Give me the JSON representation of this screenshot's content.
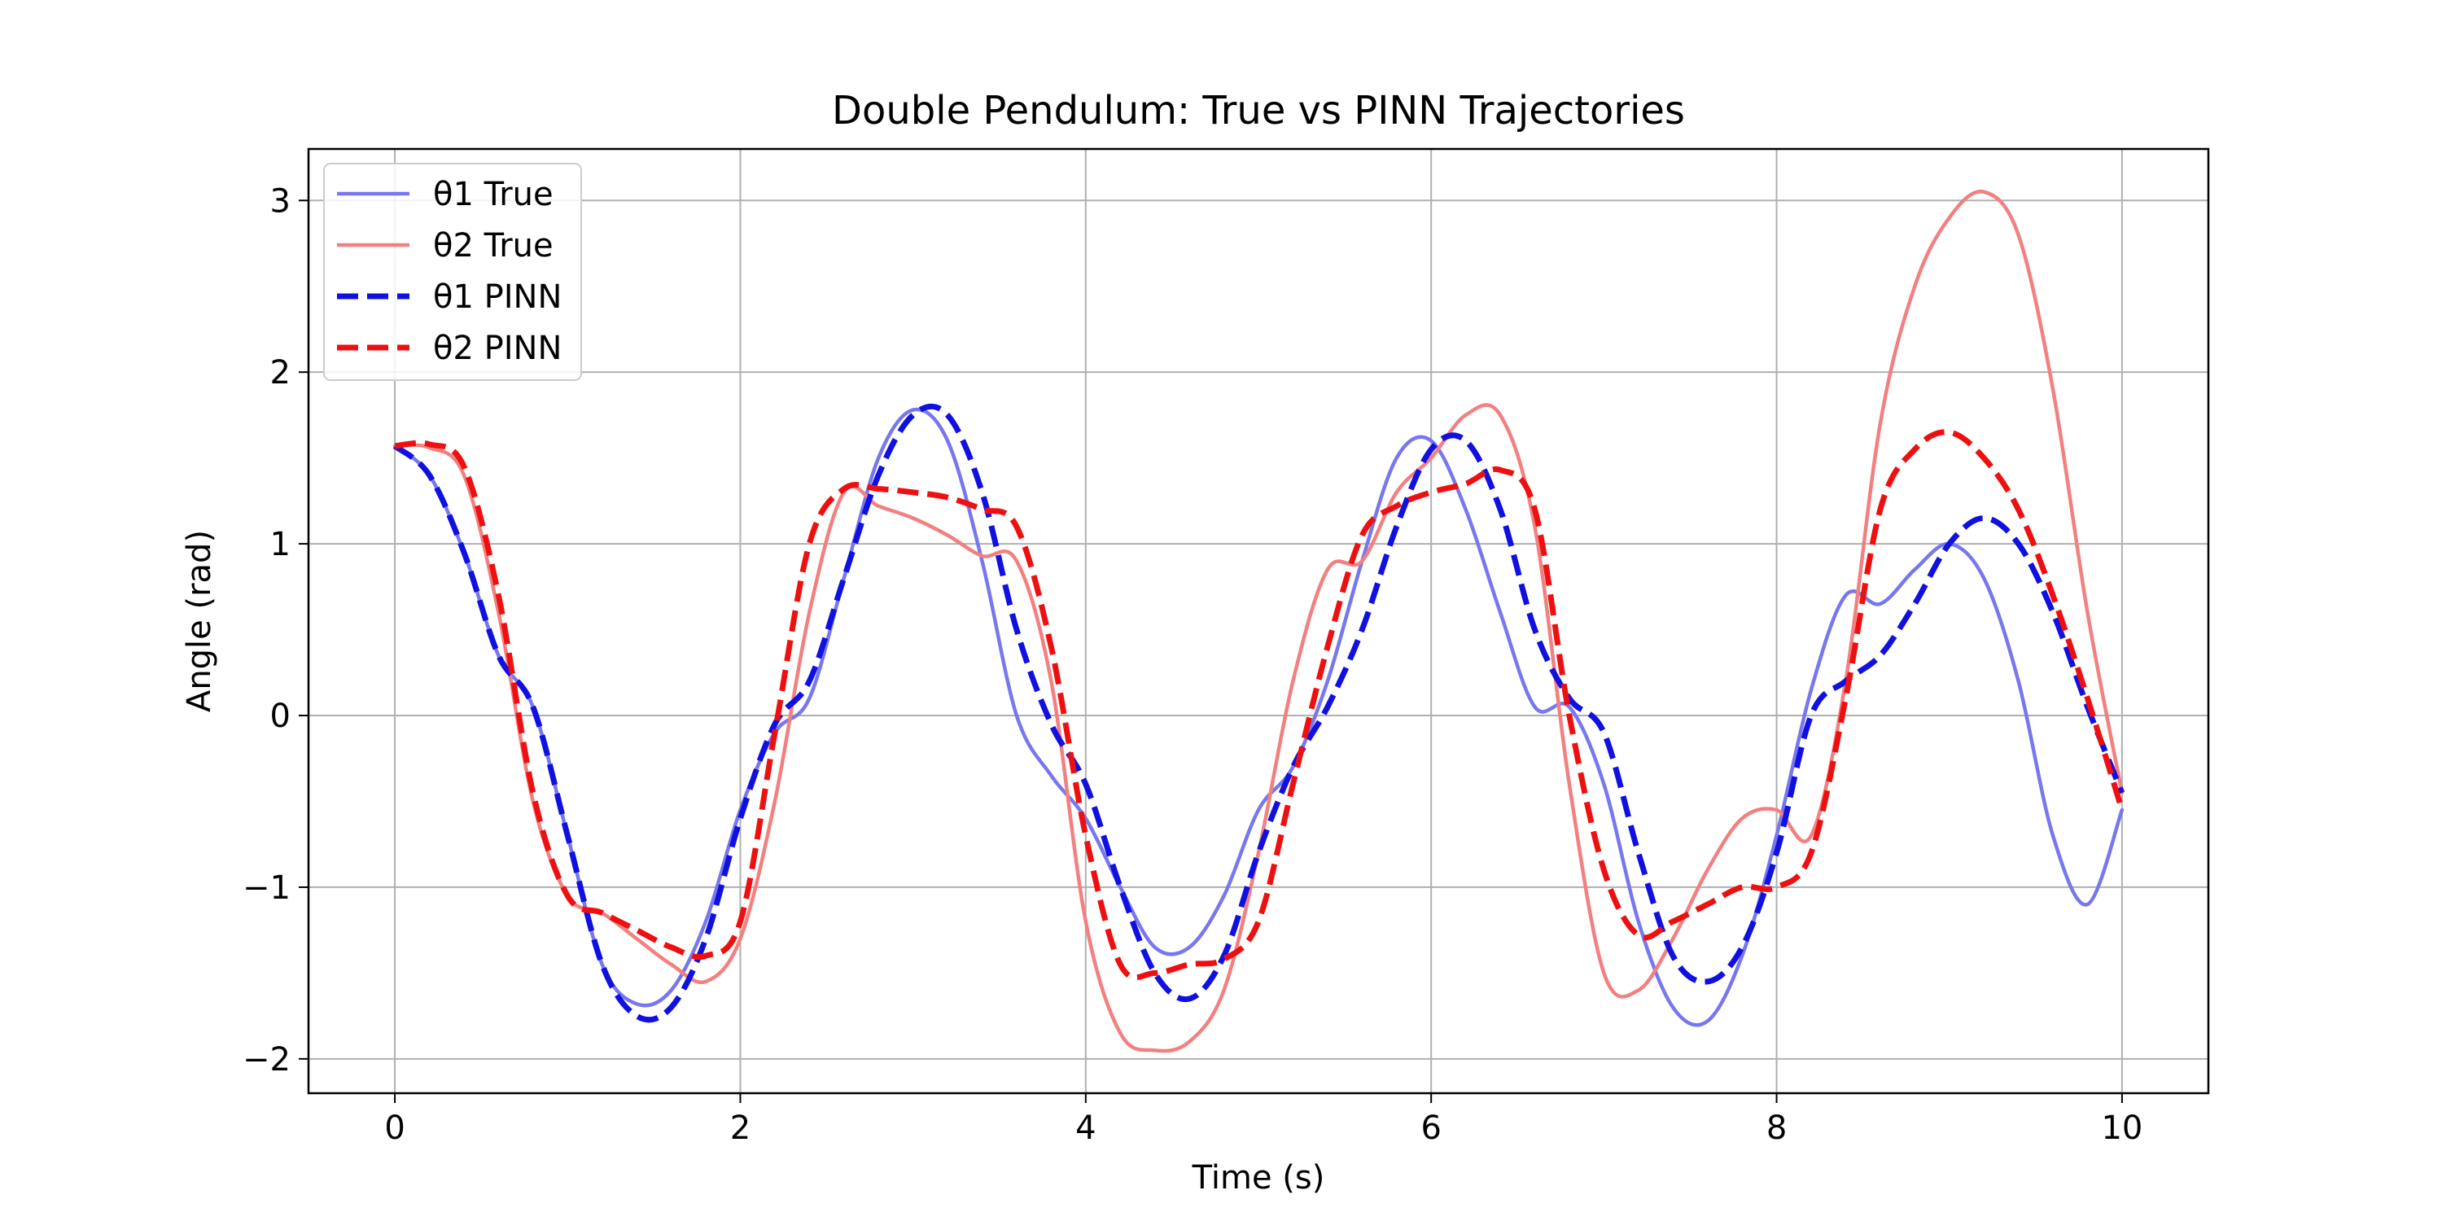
{
  "chart_data": {
    "type": "line",
    "title": "Double Pendulum: True vs PINN Trajectories",
    "xlabel": "Time (s)",
    "ylabel": "Angle (rad)",
    "xlim": [
      -0.5,
      10.5
    ],
    "ylim": [
      -2.2,
      3.3
    ],
    "xticks": [
      0,
      2,
      4,
      6,
      8,
      10
    ],
    "yticks": [
      3,
      2,
      1,
      0,
      -1,
      -2
    ],
    "xtick_labels": [
      "0",
      "2",
      "4",
      "6",
      "8",
      "10"
    ],
    "ytick_labels": [
      "3",
      "2",
      "1",
      "0",
      "−1",
      "−2"
    ],
    "grid": true,
    "legend_position": "top-left",
    "series": [
      {
        "name": "θ1 True",
        "color": "#7777ee",
        "style": "solid",
        "points": [
          [
            0,
            1.57
          ],
          [
            0.2,
            1.4
          ],
          [
            0.4,
            0.95
          ],
          [
            0.6,
            0.35
          ],
          [
            0.8,
            0.05
          ],
          [
            1.0,
            -0.7
          ],
          [
            1.2,
            -1.45
          ],
          [
            1.4,
            -1.68
          ],
          [
            1.6,
            -1.6
          ],
          [
            1.8,
            -1.2
          ],
          [
            2.0,
            -0.55
          ],
          [
            2.2,
            -0.1
          ],
          [
            2.4,
            0.1
          ],
          [
            2.6,
            0.8
          ],
          [
            2.8,
            1.5
          ],
          [
            3.0,
            1.78
          ],
          [
            3.2,
            1.6
          ],
          [
            3.4,
            0.9
          ],
          [
            3.6,
            0.0
          ],
          [
            3.8,
            -0.35
          ],
          [
            4.0,
            -0.6
          ],
          [
            4.2,
            -1.0
          ],
          [
            4.4,
            -1.35
          ],
          [
            4.6,
            -1.35
          ],
          [
            4.8,
            -1.05
          ],
          [
            5.0,
            -0.55
          ],
          [
            5.2,
            -0.3
          ],
          [
            5.4,
            0.2
          ],
          [
            5.6,
            0.9
          ],
          [
            5.8,
            1.5
          ],
          [
            6.0,
            1.6
          ],
          [
            6.2,
            1.2
          ],
          [
            6.4,
            0.6
          ],
          [
            6.6,
            0.05
          ],
          [
            6.8,
            0.05
          ],
          [
            7.0,
            -0.4
          ],
          [
            7.2,
            -1.2
          ],
          [
            7.4,
            -1.7
          ],
          [
            7.6,
            -1.78
          ],
          [
            7.8,
            -1.4
          ],
          [
            8.0,
            -0.7
          ],
          [
            8.2,
            0.15
          ],
          [
            8.4,
            0.7
          ],
          [
            8.6,
            0.65
          ],
          [
            8.8,
            0.85
          ],
          [
            9.0,
            1.0
          ],
          [
            9.2,
            0.8
          ],
          [
            9.4,
            0.2
          ],
          [
            9.6,
            -0.7
          ],
          [
            9.8,
            -1.1
          ],
          [
            10.0,
            -0.55
          ]
        ]
      },
      {
        "name": "θ2 True",
        "color": "#f28080",
        "style": "solid",
        "points": [
          [
            0,
            1.57
          ],
          [
            0.2,
            1.56
          ],
          [
            0.4,
            1.4
          ],
          [
            0.6,
            0.6
          ],
          [
            0.8,
            -0.5
          ],
          [
            1.0,
            -1.05
          ],
          [
            1.2,
            -1.15
          ],
          [
            1.4,
            -1.3
          ],
          [
            1.6,
            -1.45
          ],
          [
            1.8,
            -1.55
          ],
          [
            2.0,
            -1.3
          ],
          [
            2.2,
            -0.5
          ],
          [
            2.4,
            0.6
          ],
          [
            2.6,
            1.3
          ],
          [
            2.8,
            1.22
          ],
          [
            3.0,
            1.15
          ],
          [
            3.2,
            1.05
          ],
          [
            3.4,
            0.93
          ],
          [
            3.6,
            0.9
          ],
          [
            3.8,
            0.2
          ],
          [
            4.0,
            -1.2
          ],
          [
            4.2,
            -1.85
          ],
          [
            4.4,
            -1.95
          ],
          [
            4.6,
            -1.9
          ],
          [
            4.8,
            -1.6
          ],
          [
            5.0,
            -0.8
          ],
          [
            5.2,
            0.2
          ],
          [
            5.4,
            0.85
          ],
          [
            5.6,
            0.9
          ],
          [
            5.8,
            1.3
          ],
          [
            6.0,
            1.5
          ],
          [
            6.2,
            1.75
          ],
          [
            6.4,
            1.75
          ],
          [
            6.6,
            1.1
          ],
          [
            6.8,
            -0.4
          ],
          [
            7.0,
            -1.5
          ],
          [
            7.2,
            -1.6
          ],
          [
            7.4,
            -1.3
          ],
          [
            7.6,
            -0.9
          ],
          [
            7.8,
            -0.6
          ],
          [
            8.0,
            -0.55
          ],
          [
            8.2,
            -0.7
          ],
          [
            8.4,
            0.2
          ],
          [
            8.6,
            1.7
          ],
          [
            8.8,
            2.5
          ],
          [
            9.0,
            2.9
          ],
          [
            9.2,
            3.05
          ],
          [
            9.4,
            2.8
          ],
          [
            9.6,
            1.9
          ],
          [
            9.8,
            0.6
          ],
          [
            10.0,
            -0.45
          ]
        ]
      },
      {
        "name": "θ1 PINN",
        "color": "#1010e0",
        "style": "dashed",
        "points": [
          [
            0,
            1.57
          ],
          [
            0.2,
            1.4
          ],
          [
            0.4,
            0.95
          ],
          [
            0.6,
            0.35
          ],
          [
            0.8,
            0.05
          ],
          [
            1.0,
            -0.7
          ],
          [
            1.2,
            -1.45
          ],
          [
            1.4,
            -1.75
          ],
          [
            1.6,
            -1.7
          ],
          [
            1.8,
            -1.3
          ],
          [
            2.0,
            -0.6
          ],
          [
            2.2,
            -0.05
          ],
          [
            2.4,
            0.2
          ],
          [
            2.6,
            0.8
          ],
          [
            2.8,
            1.4
          ],
          [
            3.0,
            1.75
          ],
          [
            3.2,
            1.75
          ],
          [
            3.4,
            1.3
          ],
          [
            3.6,
            0.5
          ],
          [
            3.8,
            -0.05
          ],
          [
            4.0,
            -0.4
          ],
          [
            4.2,
            -1.0
          ],
          [
            4.4,
            -1.5
          ],
          [
            4.6,
            -1.65
          ],
          [
            4.8,
            -1.4
          ],
          [
            5.0,
            -0.8
          ],
          [
            5.2,
            -0.3
          ],
          [
            5.4,
            0.05
          ],
          [
            5.6,
            0.5
          ],
          [
            5.8,
            1.1
          ],
          [
            6.0,
            1.55
          ],
          [
            6.2,
            1.6
          ],
          [
            6.4,
            1.2
          ],
          [
            6.6,
            0.5
          ],
          [
            6.8,
            0.1
          ],
          [
            7.0,
            -0.1
          ],
          [
            7.2,
            -0.8
          ],
          [
            7.4,
            -1.4
          ],
          [
            7.6,
            -1.55
          ],
          [
            7.8,
            -1.35
          ],
          [
            8.0,
            -0.8
          ],
          [
            8.2,
            0.0
          ],
          [
            8.4,
            0.2
          ],
          [
            8.6,
            0.35
          ],
          [
            8.8,
            0.65
          ],
          [
            9.0,
            1.0
          ],
          [
            9.2,
            1.15
          ],
          [
            9.4,
            1.0
          ],
          [
            9.6,
            0.6
          ],
          [
            9.8,
            0.05
          ],
          [
            10.0,
            -0.45
          ]
        ]
      },
      {
        "name": "θ2 PINN",
        "color": "#ee1010",
        "style": "dashed",
        "points": [
          [
            0,
            1.57
          ],
          [
            0.2,
            1.58
          ],
          [
            0.4,
            1.45
          ],
          [
            0.6,
            0.7
          ],
          [
            0.8,
            -0.45
          ],
          [
            1.0,
            -1.05
          ],
          [
            1.2,
            -1.15
          ],
          [
            1.4,
            -1.25
          ],
          [
            1.6,
            -1.35
          ],
          [
            1.8,
            -1.4
          ],
          [
            2.0,
            -1.2
          ],
          [
            2.2,
            -0.1
          ],
          [
            2.4,
            1.0
          ],
          [
            2.6,
            1.32
          ],
          [
            2.8,
            1.32
          ],
          [
            3.0,
            1.3
          ],
          [
            3.2,
            1.27
          ],
          [
            3.4,
            1.2
          ],
          [
            3.6,
            1.1
          ],
          [
            3.8,
            0.4
          ],
          [
            4.0,
            -0.7
          ],
          [
            4.2,
            -1.45
          ],
          [
            4.4,
            -1.5
          ],
          [
            4.6,
            -1.45
          ],
          [
            4.8,
            -1.42
          ],
          [
            5.0,
            -1.2
          ],
          [
            5.2,
            -0.4
          ],
          [
            5.4,
            0.4
          ],
          [
            5.6,
            1.05
          ],
          [
            5.8,
            1.22
          ],
          [
            6.0,
            1.3
          ],
          [
            6.2,
            1.35
          ],
          [
            6.4,
            1.43
          ],
          [
            6.6,
            1.2
          ],
          [
            6.8,
            0.0
          ],
          [
            7.0,
            -0.9
          ],
          [
            7.2,
            -1.28
          ],
          [
            7.4,
            -1.2
          ],
          [
            7.6,
            -1.1
          ],
          [
            7.8,
            -1.0
          ],
          [
            8.0,
            -1.0
          ],
          [
            8.2,
            -0.8
          ],
          [
            8.4,
            0.1
          ],
          [
            8.6,
            1.2
          ],
          [
            8.8,
            1.55
          ],
          [
            9.0,
            1.65
          ],
          [
            9.2,
            1.5
          ],
          [
            9.4,
            1.2
          ],
          [
            9.6,
            0.7
          ],
          [
            9.8,
            0.1
          ],
          [
            10.0,
            -0.55
          ]
        ]
      }
    ]
  }
}
